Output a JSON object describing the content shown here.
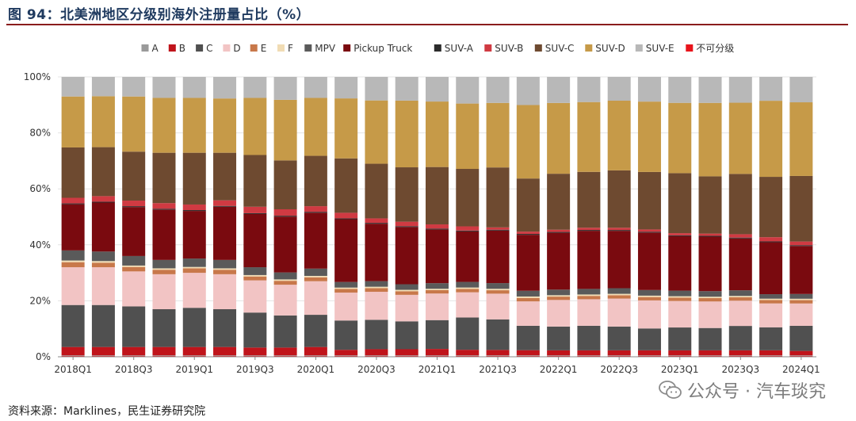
{
  "title": "图 94：北美洲地区分级别海外注册量占比（%）",
  "source": "资料来源：Marklines，民生证券研究院",
  "watermark": "公众号 · 汽车琰究",
  "chart_data": {
    "type": "bar",
    "stacked": true,
    "ylim": [
      0,
      100
    ],
    "y_ticks": [
      "0%",
      "20%",
      "40%",
      "60%",
      "80%",
      "100%"
    ],
    "x_tick_labels": [
      "2018Q1",
      "2018Q3",
      "2019Q1",
      "2019Q3",
      "2020Q1",
      "2020Q3",
      "2021Q1",
      "2021Q3",
      "2022Q1",
      "2022Q3",
      "2023Q1",
      "2023Q3",
      "2024Q1"
    ],
    "categories": [
      "2018Q1",
      "2018Q2",
      "2018Q3",
      "2018Q4",
      "2019Q1",
      "2019Q2",
      "2019Q3",
      "2019Q4",
      "2020Q1",
      "2020Q2",
      "2020Q3",
      "2020Q4",
      "2021Q1",
      "2021Q2",
      "2021Q3",
      "2021Q4",
      "2022Q1",
      "2022Q2",
      "2022Q3",
      "2022Q4",
      "2023Q1",
      "2023Q2",
      "2023Q3",
      "2023Q4",
      "2024Q1"
    ],
    "legend_position": "top",
    "series": [
      {
        "name": "不可分级",
        "color": "#e8141b",
        "values": [
          0.3,
          0.3,
          0.3,
          0.3,
          0.3,
          0.3,
          0.3,
          0.3,
          0.3,
          0.3,
          0.3,
          0.3,
          0.3,
          0.3,
          0.3,
          0.3,
          0.3,
          0.3,
          0.3,
          0.3,
          0.3,
          0.3,
          0.3,
          0.3,
          0.3
        ]
      },
      {
        "name": "A",
        "color": "#9a9a9a",
        "values": [
          0.2,
          0.2,
          0.2,
          0.2,
          0.2,
          0.2,
          0.2,
          0.2,
          0.2,
          0.2,
          0.2,
          0.2,
          0.2,
          0.2,
          0.2,
          0.2,
          0.2,
          0.2,
          0.2,
          0.2,
          0.2,
          0.2,
          0.2,
          0.2,
          0.2
        ]
      },
      {
        "name": "B",
        "color": "#c0141b",
        "values": [
          3.0,
          3.0,
          3.0,
          3.0,
          3.0,
          3.0,
          2.8,
          2.8,
          3.0,
          2.0,
          2.2,
          2.2,
          2.3,
          2.0,
          1.9,
          1.8,
          1.8,
          1.8,
          1.8,
          1.8,
          1.8,
          1.8,
          1.8,
          1.8,
          1.6
        ]
      },
      {
        "name": "C",
        "color": "#505050",
        "values": [
          15.0,
          15.0,
          14.5,
          13.5,
          14.0,
          13.5,
          12.5,
          11.5,
          11.5,
          10.5,
          10.5,
          10.0,
          10.3,
          11.5,
          10.7,
          8.5,
          8.5,
          8.8,
          8.5,
          7.8,
          8.2,
          8.0,
          8.7,
          8.2,
          9.0
        ]
      },
      {
        "name": "D",
        "color": "#f2c4c4",
        "values": [
          13.5,
          13.5,
          12.5,
          12.5,
          12.5,
          12.5,
          11.5,
          11.0,
          12.0,
          10.0,
          10.0,
          9.5,
          9.5,
          9.0,
          9.0,
          8.5,
          9.5,
          9.5,
          10.0,
          10.0,
          9.5,
          9.5,
          9.0,
          8.5,
          8.0
        ]
      },
      {
        "name": "E",
        "color": "#c8784a",
        "values": [
          1.8,
          1.6,
          1.6,
          1.6,
          1.6,
          1.6,
          1.4,
          1.4,
          1.4,
          1.3,
          1.3,
          1.3,
          1.2,
          1.2,
          1.2,
          1.2,
          1.2,
          1.2,
          1.2,
          1.2,
          1.2,
          1.2,
          1.2,
          1.2,
          1.2
        ]
      },
      {
        "name": "F",
        "color": "#f1dcb4",
        "values": [
          0.6,
          0.6,
          0.5,
          0.5,
          0.5,
          0.5,
          0.5,
          0.5,
          0.5,
          0.5,
          0.5,
          0.5,
          0.5,
          0.5,
          0.5,
          0.5,
          0.5,
          0.5,
          0.5,
          0.5,
          0.5,
          0.5,
          0.5,
          0.5,
          0.5
        ]
      },
      {
        "name": "MPV",
        "color": "#5a5a5a",
        "values": [
          3.6,
          3.4,
          3.4,
          3.0,
          3.0,
          3.0,
          2.8,
          2.5,
          2.6,
          2.0,
          2.0,
          2.0,
          2.0,
          2.0,
          2.0,
          2.0,
          2.0,
          2.0,
          2.0,
          2.0,
          2.0,
          2.0,
          2.0,
          1.6,
          1.7
        ]
      },
      {
        "name": "Pickup Truck",
        "color": "#7a0a0f",
        "values": [
          16.5,
          17.5,
          17.5,
          18.0,
          17.0,
          19.0,
          19.0,
          20.0,
          20.0,
          22.5,
          20.5,
          20.5,
          19.2,
          18.0,
          18.4,
          19.5,
          20.3,
          20.8,
          20.5,
          20.5,
          19.5,
          19.5,
          18.5,
          18.5,
          17.2
        ]
      },
      {
        "name": "SUV-A",
        "color": "#2b2b2b",
        "values": [
          0.3,
          0.3,
          0.3,
          0.3,
          0.3,
          0.3,
          0.3,
          0.3,
          0.3,
          0.3,
          0.3,
          0.3,
          0.3,
          0.3,
          0.3,
          0.3,
          0.3,
          0.3,
          0.3,
          0.3,
          0.3,
          0.3,
          0.3,
          0.3,
          0.3
        ]
      },
      {
        "name": "SUV-B",
        "color": "#d03a42",
        "values": [
          2.0,
          2.0,
          2.0,
          2.0,
          2.0,
          2.0,
          2.3,
          2.3,
          2.0,
          2.0,
          1.6,
          1.6,
          1.5,
          1.5,
          0.8,
          0.8,
          0.8,
          0.8,
          0.8,
          0.8,
          0.8,
          0.8,
          1.2,
          1.5,
          1.3
        ]
      },
      {
        "name": "SUV-C",
        "color": "#6e4a30",
        "values": [
          18.0,
          17.5,
          17.5,
          18.0,
          18.5,
          17.0,
          18.5,
          17.5,
          18.0,
          19.5,
          19.5,
          19.5,
          20.5,
          20.5,
          21.0,
          18.5,
          20.0,
          20.0,
          20.5,
          20.5,
          21.5,
          20.5,
          21.5,
          21.5,
          23.5
        ]
      },
      {
        "name": "SUV-D",
        "color": "#c69a48",
        "values": [
          18.2,
          18.2,
          19.7,
          19.6,
          19.6,
          19.4,
          20.4,
          21.7,
          20.7,
          21.5,
          22.6,
          23.9,
          23.4,
          23.3,
          22.6,
          25.6,
          25.3,
          25.0,
          24.9,
          25.1,
          25.2,
          26.3,
          25.4,
          27.1,
          26.4
        ]
      },
      {
        "name": "SUV-E",
        "color": "#b8b8b8",
        "values": [
          7.0,
          6.9,
          7.0,
          7.5,
          7.5,
          7.7,
          7.5,
          8.2,
          7.5,
          7.7,
          8.4,
          8.5,
          8.8,
          9.5,
          9.1,
          9.8,
          9.3,
          9.0,
          8.5,
          8.8,
          9.3,
          9.3,
          9.2,
          8.5,
          9.1
        ]
      }
    ],
    "legend_order": [
      "A",
      "B",
      "C",
      "D",
      "E",
      "F",
      "MPV",
      "Pickup Truck",
      "SUV-A",
      "SUV-B",
      "SUV-C",
      "SUV-D",
      "SUV-E",
      "不可分级"
    ]
  }
}
